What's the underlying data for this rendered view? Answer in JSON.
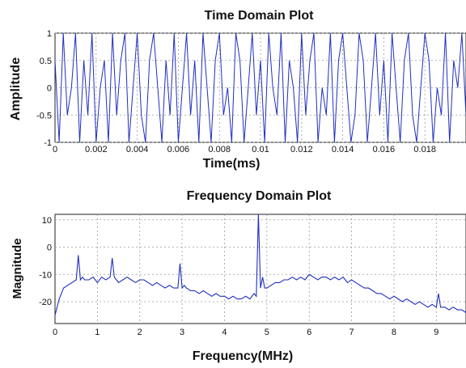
{
  "chart_data": [
    {
      "type": "line",
      "title": "Time Domain Plot",
      "xlabel": "Time(ms)",
      "ylabel": "Amplitude",
      "xlim": [
        0,
        0.02
      ],
      "ylim": [
        -1,
        1
      ],
      "xticks": [
        "0",
        "0.002",
        "0.004",
        "0.006",
        "0.008",
        "0.01",
        "0.012",
        "0.014",
        "0.016",
        "0.018"
      ],
      "xtick_values": [
        0,
        0.002,
        0.004,
        0.006,
        0.008,
        0.01,
        0.012,
        0.014,
        0.016,
        0.018
      ],
      "yticks": [
        "-1",
        "-0.5",
        "0",
        "0.5",
        "1"
      ],
      "ytick_values": [
        -1,
        -0.5,
        0,
        0.5,
        1
      ],
      "grid": true,
      "series": [
        {
          "color": "#1f2fbf",
          "x": [
            0,
            0.0002,
            0.0004,
            0.0006,
            0.0008,
            0.001,
            0.0012,
            0.0014,
            0.0016,
            0.0018,
            0.002,
            0.0022,
            0.0024,
            0.0026,
            0.0028,
            0.003,
            0.0032,
            0.0034,
            0.0036,
            0.0038,
            0.004,
            0.0042,
            0.0044,
            0.0046,
            0.0048,
            0.005,
            0.0052,
            0.0054,
            0.0056,
            0.0058,
            0.006,
            0.0062,
            0.0064,
            0.0066,
            0.0068,
            0.007,
            0.0072,
            0.0074,
            0.0076,
            0.0078,
            0.008,
            0.0082,
            0.0084,
            0.0086,
            0.0088,
            0.009,
            0.0092,
            0.0094,
            0.0096,
            0.0098,
            0.01,
            0.0102,
            0.0104,
            0.0106,
            0.0108,
            0.011,
            0.0112,
            0.0114,
            0.0116,
            0.0118,
            0.012,
            0.0122,
            0.0124,
            0.0126,
            0.0128,
            0.013,
            0.0132,
            0.0134,
            0.0136,
            0.0138,
            0.014,
            0.0142,
            0.0144,
            0.0146,
            0.0148,
            0.015,
            0.0152,
            0.0154,
            0.0156,
            0.0158,
            0.016,
            0.0162,
            0.0164,
            0.0166,
            0.0168,
            0.017,
            0.0172,
            0.0174,
            0.0176,
            0.0178,
            0.018,
            0.0182,
            0.0184,
            0.0186,
            0.0188,
            0.019,
            0.0192,
            0.0194,
            0.0196,
            0.0198,
            0.02
          ],
          "y": [
            0.5,
            -1,
            1,
            -0.5,
            0,
            1,
            -1,
            0.5,
            -0.5,
            1,
            -1,
            0,
            0.5,
            -1,
            1,
            -0.5,
            0.5,
            1,
            -1,
            0,
            1,
            -0.5,
            -1,
            0.5,
            1,
            0,
            -1,
            0.5,
            -0.5,
            1,
            -1,
            0,
            1,
            -0.5,
            0.5,
            -1,
            1,
            0,
            -1,
            0.5,
            1,
            -0.5,
            0,
            -1,
            1,
            0.5,
            -1,
            0,
            1,
            -0.5,
            0.5,
            -1,
            1,
            0,
            -0.5,
            1,
            -1,
            0.5,
            0,
            -1,
            1,
            -0.5,
            0.5,
            1,
            -1,
            0,
            -0.5,
            1,
            -1,
            0.5,
            1,
            0,
            -1,
            -0.5,
            1,
            0.5,
            -1,
            0,
            1,
            -0.5,
            0.5,
            -1,
            1,
            0,
            -1,
            0.5,
            1,
            -0.5,
            -1,
            0,
            1,
            0.5,
            -1,
            0,
            -0.5,
            1,
            -1,
            0.5,
            0,
            1,
            -0.5
          ]
        }
      ]
    },
    {
      "type": "line",
      "title": "Frequency Domain Plot",
      "xlabel": "Frequency(MHz)",
      "ylabel": "Magnitude",
      "xlim": [
        0,
        9.7
      ],
      "ylim": [
        -28,
        12
      ],
      "xticks": [
        "0",
        "1",
        "2",
        "3",
        "4",
        "5",
        "6",
        "7",
        "8",
        "9"
      ],
      "xtick_values": [
        0,
        1,
        2,
        3,
        4,
        5,
        6,
        7,
        8,
        9
      ],
      "yticks": [
        "10",
        "0",
        "-10",
        "-20"
      ],
      "ytick_values": [
        10,
        0,
        -10,
        -20
      ],
      "grid": true,
      "series": [
        {
          "color": "#1f2fbf",
          "x": [
            0,
            0.05,
            0.1,
            0.15,
            0.2,
            0.3,
            0.4,
            0.5,
            0.55,
            0.6,
            0.65,
            0.7,
            0.8,
            0.9,
            1.0,
            1.1,
            1.2,
            1.3,
            1.35,
            1.4,
            1.45,
            1.5,
            1.6,
            1.7,
            1.8,
            1.9,
            2.0,
            2.1,
            2.2,
            2.3,
            2.4,
            2.5,
            2.6,
            2.7,
            2.8,
            2.9,
            2.95,
            3.0,
            3.05,
            3.1,
            3.2,
            3.3,
            3.4,
            3.5,
            3.6,
            3.7,
            3.8,
            3.9,
            4.0,
            4.1,
            4.2,
            4.3,
            4.4,
            4.5,
            4.6,
            4.7,
            4.75,
            4.8,
            4.85,
            4.9,
            4.95,
            5.0,
            5.1,
            5.2,
            5.3,
            5.4,
            5.5,
            5.6,
            5.7,
            5.8,
            5.9,
            6.0,
            6.1,
            6.2,
            6.3,
            6.4,
            6.5,
            6.6,
            6.7,
            6.8,
            6.9,
            7.0,
            7.1,
            7.2,
            7.3,
            7.4,
            7.5,
            7.6,
            7.7,
            7.8,
            7.9,
            8.0,
            8.1,
            8.2,
            8.3,
            8.4,
            8.5,
            8.6,
            8.7,
            8.8,
            8.9,
            9.0,
            9.05,
            9.1,
            9.2,
            9.3,
            9.4,
            9.5,
            9.6,
            9.7
          ],
          "y": [
            -25,
            -22,
            -19,
            -17,
            -15,
            -14,
            -13,
            -12,
            -3,
            -12,
            -11,
            -12,
            -12,
            -11,
            -13,
            -11,
            -12,
            -11,
            -4,
            -11,
            -12,
            -13,
            -12,
            -11,
            -12,
            -13,
            -12,
            -12,
            -13,
            -14,
            -13,
            -14,
            -15,
            -14,
            -15,
            -15,
            -6,
            -15,
            -14,
            -15,
            -16,
            -16,
            -17,
            -16,
            -17,
            -18,
            -17,
            -18,
            -18,
            -19,
            -18,
            -19,
            -19,
            -18,
            -19,
            -17,
            -18,
            12,
            -15,
            -11,
            -15,
            -15,
            -14,
            -13,
            -13,
            -12,
            -12,
            -11,
            -12,
            -11,
            -12,
            -10,
            -11,
            -12,
            -11,
            -11,
            -12,
            -11,
            -12,
            -11,
            -13,
            -12,
            -13,
            -14,
            -15,
            -15,
            -16,
            -17,
            -17,
            -18,
            -19,
            -18,
            -19,
            -20,
            -19,
            -20,
            -21,
            -20,
            -21,
            -22,
            -21,
            -22,
            -17,
            -22,
            -22,
            -23,
            -22,
            -23,
            -23,
            -24
          ]
        }
      ]
    }
  ]
}
